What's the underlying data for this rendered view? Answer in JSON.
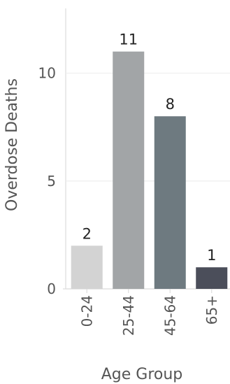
{
  "chart_data": {
    "type": "bar",
    "categories": [
      "0-24",
      "25-44",
      "45-64",
      "65+"
    ],
    "values": [
      2,
      11,
      8,
      1
    ],
    "data_labels": [
      "2",
      "11",
      "8",
      "1"
    ],
    "bar_colors": [
      "#d3d3d3",
      "#a2a5a7",
      "#6e7a80",
      "#4b4e5a"
    ],
    "xlabel": "Age Group",
    "ylabel": "Overdose Deaths",
    "ylim": [
      0,
      13
    ],
    "yticks": [
      0,
      5,
      10
    ],
    "ytick_labels": [
      "0",
      "5",
      "10"
    ],
    "grid": "horizontal",
    "legend": "none"
  }
}
